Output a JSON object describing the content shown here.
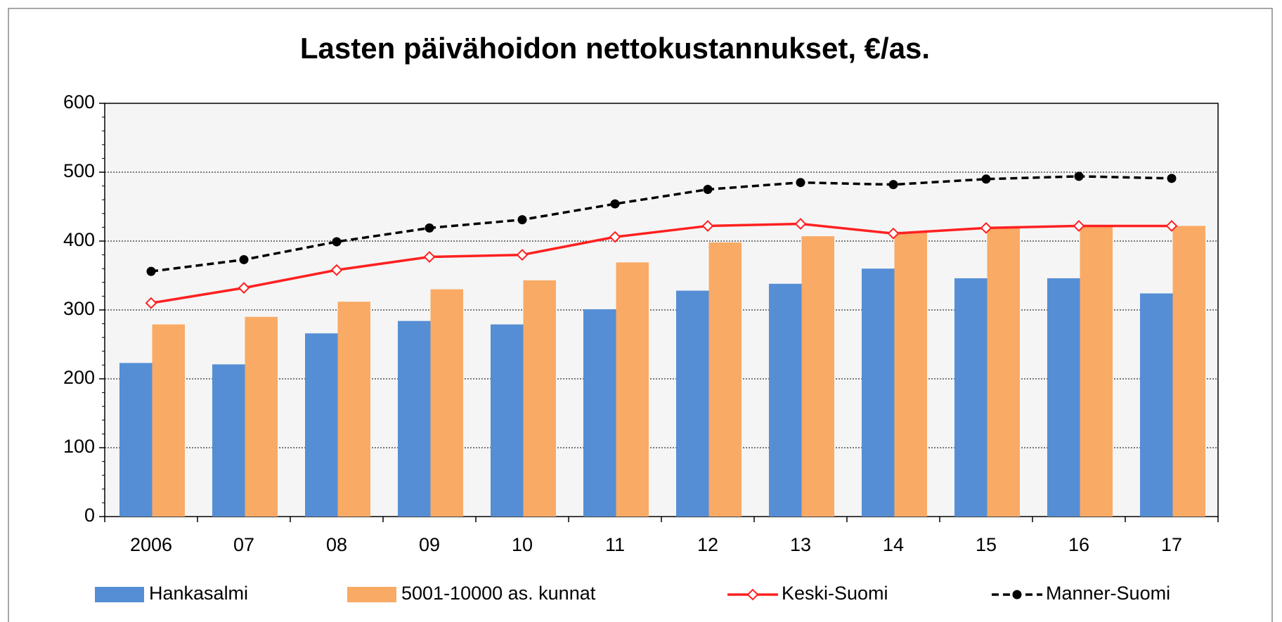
{
  "chart_data": {
    "type": "bar_line",
    "title": "Lasten päivähoidon nettokustannukset, €/as.",
    "categories": [
      "2006",
      "07",
      "08",
      "09",
      "10",
      "11",
      "12",
      "13",
      "14",
      "15",
      "16",
      "17"
    ],
    "series": [
      {
        "name": "Hankasalmi",
        "type": "bar",
        "color": "#558ed5",
        "values": [
          223,
          221,
          266,
          284,
          279,
          301,
          328,
          338,
          360,
          346,
          346,
          324
        ]
      },
      {
        "name": "5001-10000 as. kunnat",
        "type": "bar",
        "color": "#f9aa65",
        "values": [
          279,
          290,
          312,
          330,
          343,
          369,
          398,
          407,
          413,
          419,
          421,
          422
        ]
      },
      {
        "name": "Keski-Suomi",
        "type": "line",
        "color": "#ff2020",
        "marker": "diamond",
        "values": [
          310,
          332,
          358,
          377,
          380,
          406,
          422,
          425,
          411,
          419,
          422,
          422
        ]
      },
      {
        "name": "Manner-Suomi",
        "type": "line",
        "color": "#000000",
        "marker": "circle",
        "dashed": true,
        "values": [
          356,
          373,
          399,
          419,
          431,
          454,
          475,
          485,
          482,
          490,
          494,
          491
        ]
      }
    ],
    "ylim": [
      0,
      600
    ],
    "yticks": [
      0,
      100,
      200,
      300,
      400,
      500,
      600
    ],
    "grid": true,
    "legend": "bottom"
  }
}
